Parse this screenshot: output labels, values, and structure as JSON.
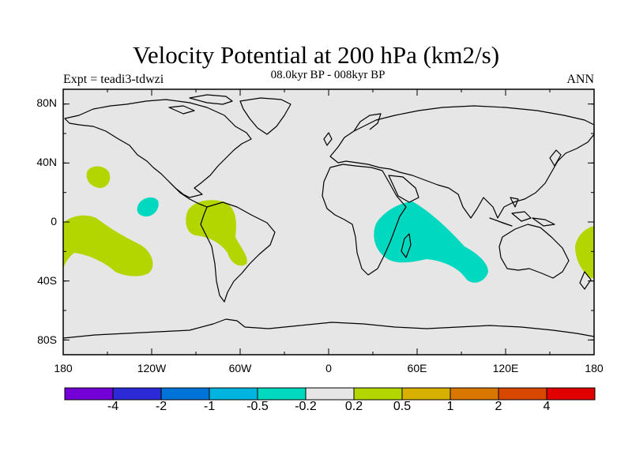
{
  "title": "Velocity Potential at 200 hPa (km2/s)",
  "subtitle": "08.0kyr BP - 008kyr BP",
  "expt_label": "Expt = teadi3-tdwzi",
  "season": "ANN",
  "map": {
    "lon_range": [
      -180,
      180
    ],
    "lat_range": [
      -90,
      90
    ],
    "background_color": "#e6e6e6",
    "lat_ticks": [
      {
        "lat": 80,
        "label": "80N"
      },
      {
        "lat": 40,
        "label": "40N"
      },
      {
        "lat": 0,
        "label": "0"
      },
      {
        "lat": -40,
        "label": "40S"
      },
      {
        "lat": -80,
        "label": "80S"
      }
    ],
    "lon_ticks": [
      {
        "lon": -180,
        "label": "180"
      },
      {
        "lon": -120,
        "label": "120W"
      },
      {
        "lon": -60,
        "label": "60W"
      },
      {
        "lon": 0,
        "label": "0"
      },
      {
        "lon": 60,
        "label": "60E"
      },
      {
        "lon": 120,
        "label": "120E"
      },
      {
        "lon": 180,
        "label": "180"
      }
    ]
  },
  "colorbar": {
    "colors": [
      "#7400d8",
      "#2a2ad6",
      "#0073d8",
      "#00b4e0",
      "#00d8c0",
      "#e6e6e6",
      "#b4d600",
      "#d8b000",
      "#d87800",
      "#d84800",
      "#e00000"
    ],
    "labels": [
      "-4",
      "-2",
      "-1",
      "-0.5",
      "-0.2",
      "0.2",
      "0.5",
      "1",
      "2",
      "4"
    ]
  },
  "chart_data": {
    "type": "filled-contour-map",
    "variable": "Velocity Potential at 200 hPa (km2/s)",
    "levels": [
      -4,
      -2,
      -1,
      -0.5,
      -0.2,
      0.2,
      0.5,
      1,
      2,
      4
    ],
    "regions": [
      {
        "label": "Western Indian Ocean / East Africa",
        "category": "-0.5 to -0.2",
        "color": "#00d8c0"
      },
      {
        "label": "Eastern tropical Pacific (~10N, 120W)",
        "category": "-0.5 to -0.2",
        "color": "#00d8c0"
      },
      {
        "label": "Northern South America",
        "category": "0.2 to 0.5",
        "color": "#b4d600"
      },
      {
        "label": "South-central Pacific",
        "category": "0.2 to 0.5",
        "color": "#b4d600"
      },
      {
        "label": "North-central Pacific (~30N, 160W)",
        "category": "0.2 to 0.5",
        "color": "#b4d600"
      },
      {
        "label": "Southwest Pacific east of Australia",
        "category": "0.2 to 0.5",
        "color": "#b4d600"
      }
    ]
  }
}
